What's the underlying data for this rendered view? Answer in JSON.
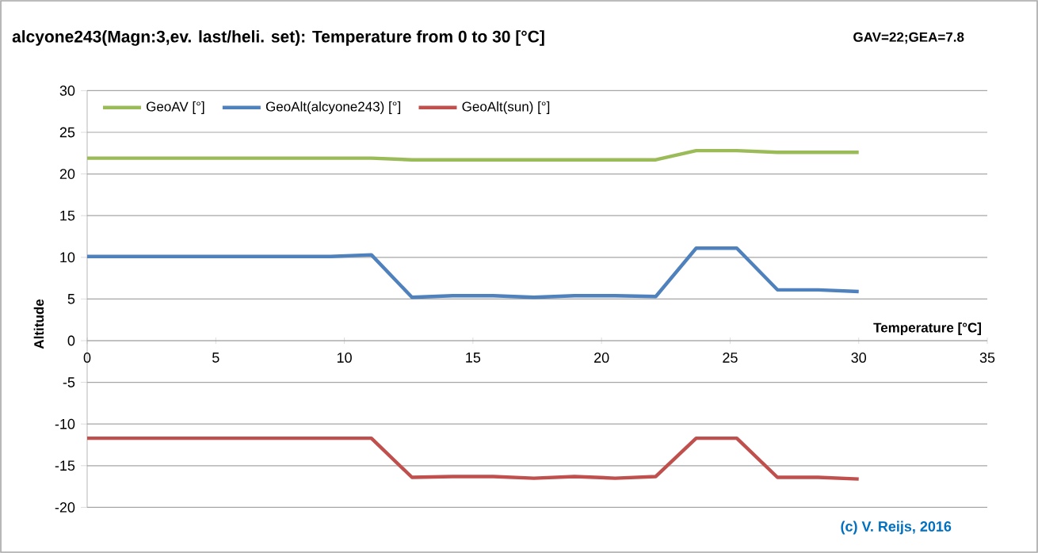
{
  "chart_data": {
    "type": "line",
    "title": "alcyone243(Magn:3,ev. last/heli. set): Temperature from 0 to 30 [°C]",
    "annotations": [
      "GAV=22;GEA=7.8",
      "(c) V. Reijs, 2016"
    ],
    "xlabel": "Temperature [°C]",
    "ylabel": "Altitude",
    "x": [
      0,
      1.58,
      3.16,
      4.74,
      6.32,
      7.89,
      9.47,
      11.05,
      12.63,
      14.21,
      15.79,
      17.37,
      18.95,
      20.53,
      22.11,
      23.68,
      25.26,
      26.84,
      28.42,
      30
    ],
    "series": [
      {
        "name": "GeoAV [°]",
        "color": "#9bbb59",
        "values": [
          21.9,
          21.9,
          21.9,
          21.9,
          21.9,
          21.9,
          21.9,
          21.9,
          21.7,
          21.7,
          21.7,
          21.7,
          21.7,
          21.7,
          21.7,
          22.8,
          22.8,
          22.6,
          22.6,
          22.6
        ]
      },
      {
        "name": "GeoAlt(alcyone243) [°]",
        "color": "#4f81bd",
        "values": [
          10.1,
          10.1,
          10.1,
          10.1,
          10.1,
          10.1,
          10.1,
          10.3,
          5.2,
          5.4,
          5.4,
          5.2,
          5.4,
          5.4,
          5.3,
          11.1,
          11.1,
          6.1,
          6.1,
          5.9
        ]
      },
      {
        "name": "GeoAlt(sun) [°]",
        "color": "#c0504d",
        "values": [
          -11.7,
          -11.7,
          -11.7,
          -11.7,
          -11.7,
          -11.7,
          -11.7,
          -11.7,
          -16.4,
          -16.3,
          -16.3,
          -16.5,
          -16.3,
          -16.5,
          -16.3,
          -11.7,
          -11.7,
          -16.4,
          -16.4,
          -16.6
        ]
      }
    ],
    "xlim": [
      0,
      35
    ],
    "ylim": [
      -20,
      30
    ],
    "xticks": [
      0,
      5,
      10,
      15,
      20,
      25,
      30,
      35
    ],
    "yticks": [
      -20,
      -15,
      -10,
      -5,
      0,
      5,
      10,
      15,
      20,
      25,
      30
    ],
    "grid": "y",
    "legend": "top left"
  }
}
